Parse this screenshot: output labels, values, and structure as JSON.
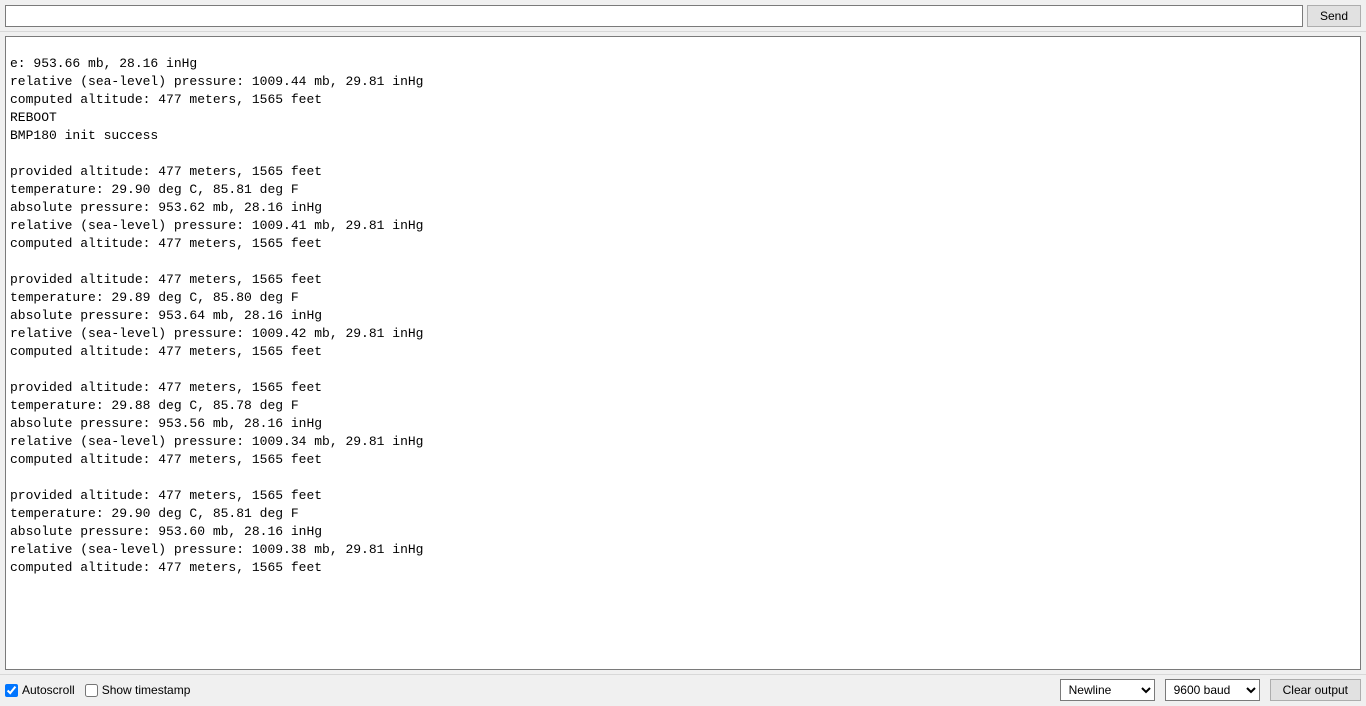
{
  "top": {
    "command_value": "",
    "send_label": "Send"
  },
  "output_lines": [
    "e: 953.66 mb, 28.16 inHg",
    "relative (sea-level) pressure: 1009.44 mb, 29.81 inHg",
    "computed altitude: 477 meters, 1565 feet",
    "REBOOT",
    "BMP180 init success",
    "",
    "provided altitude: 477 meters, 1565 feet",
    "temperature: 29.90 deg C, 85.81 deg F",
    "absolute pressure: 953.62 mb, 28.16 inHg",
    "relative (sea-level) pressure: 1009.41 mb, 29.81 inHg",
    "computed altitude: 477 meters, 1565 feet",
    "",
    "provided altitude: 477 meters, 1565 feet",
    "temperature: 29.89 deg C, 85.80 deg F",
    "absolute pressure: 953.64 mb, 28.16 inHg",
    "relative (sea-level) pressure: 1009.42 mb, 29.81 inHg",
    "computed altitude: 477 meters, 1565 feet",
    "",
    "provided altitude: 477 meters, 1565 feet",
    "temperature: 29.88 deg C, 85.78 deg F",
    "absolute pressure: 953.56 mb, 28.16 inHg",
    "relative (sea-level) pressure: 1009.34 mb, 29.81 inHg",
    "computed altitude: 477 meters, 1565 feet",
    "",
    "provided altitude: 477 meters, 1565 feet",
    "temperature: 29.90 deg C, 85.81 deg F",
    "absolute pressure: 953.60 mb, 28.16 inHg",
    "relative (sea-level) pressure: 1009.38 mb, 29.81 inHg",
    "computed altitude: 477 meters, 1565 feet"
  ],
  "bottom": {
    "autoscroll_label": "Autoscroll",
    "autoscroll_checked": true,
    "show_timestamp_label": "Show timestamp",
    "show_timestamp_checked": false,
    "line_ending_selected": "Newline",
    "baud_selected": "9600 baud",
    "clear_label": "Clear output"
  },
  "colors": {
    "window_bg": "#f0f0f0",
    "panel_bg": "#ffffff",
    "border": "#7a7a7a",
    "btn_bg": "#e1e1e1",
    "btn_border": "#adadad",
    "text": "#000000"
  }
}
